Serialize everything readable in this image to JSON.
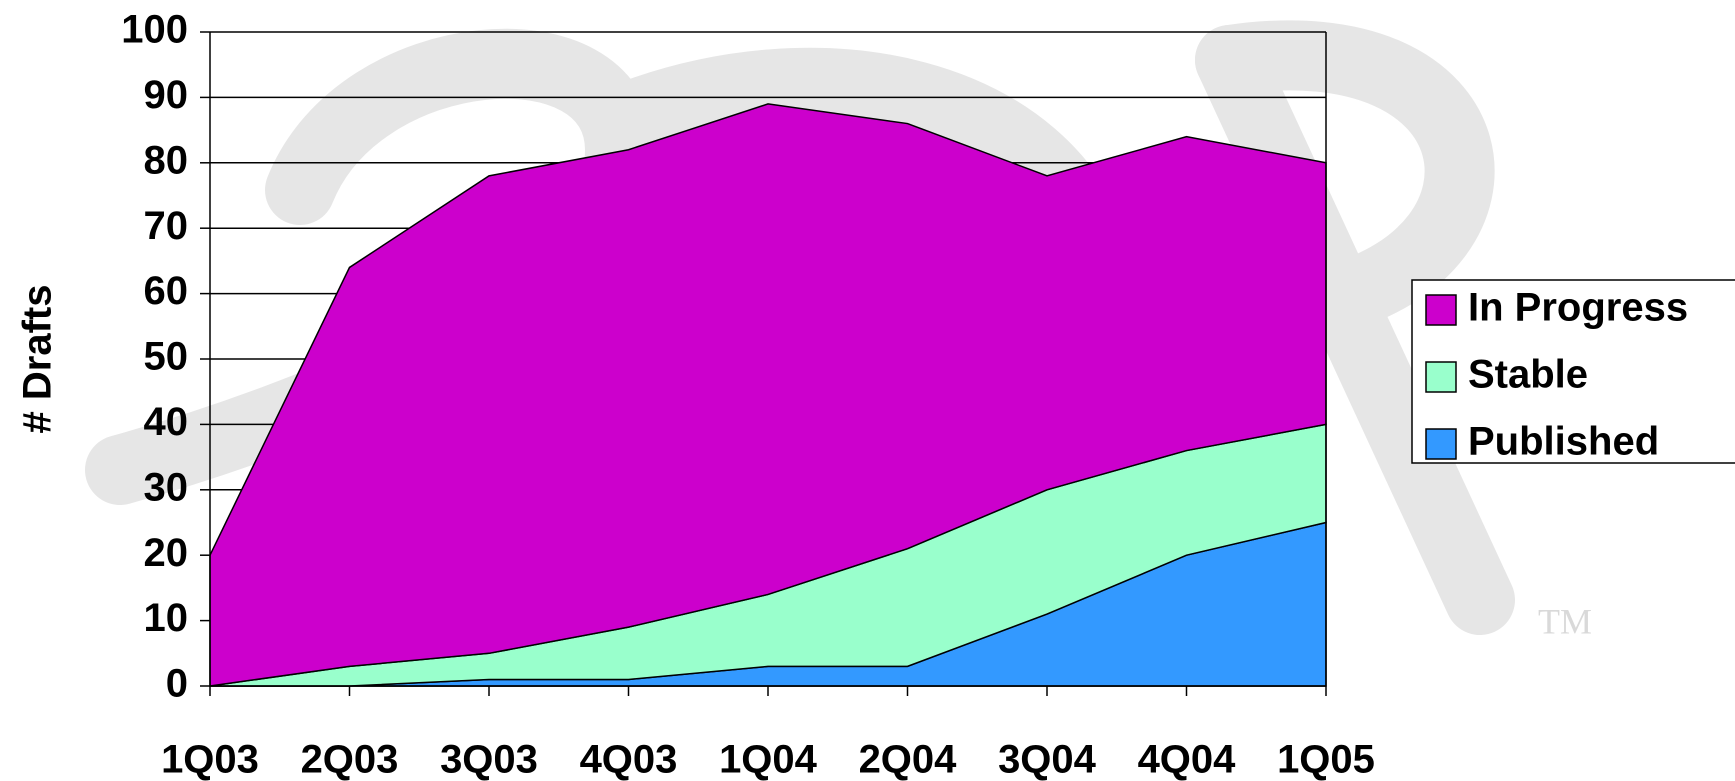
{
  "chart_data": {
    "type": "stacked_area",
    "y_label": "# Drafts",
    "categories": [
      "1Q03",
      "2Q03",
      "3Q03",
      "4Q03",
      "1Q04",
      "2Q04",
      "3Q04",
      "4Q04",
      "1Q05"
    ],
    "series": [
      {
        "name": "Published",
        "color": "#3399ff",
        "values": [
          0,
          0,
          1,
          1,
          3,
          3,
          11,
          20,
          25
        ]
      },
      {
        "name": "Stable",
        "color": "#99ffcc",
        "values": [
          0,
          3,
          4,
          8,
          11,
          18,
          19,
          16,
          15
        ]
      },
      {
        "name": "In Progress",
        "color": "#cc00cc",
        "values": [
          20,
          61,
          73,
          73,
          75,
          65,
          48,
          48,
          40
        ]
      }
    ],
    "ylim": [
      0,
      100
    ],
    "yticks": [
      0,
      10,
      20,
      30,
      40,
      50,
      60,
      70,
      80,
      90,
      100
    ],
    "grid": true,
    "legend": "right",
    "watermark": "TM"
  }
}
